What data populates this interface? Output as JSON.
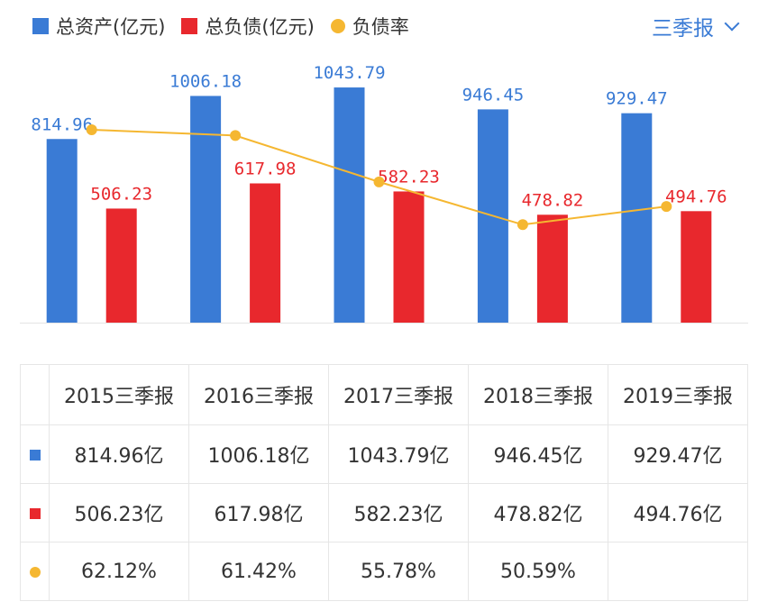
{
  "legend": [
    {
      "label": "总资产(亿元)",
      "color": "#3a7bd5",
      "marker": "square"
    },
    {
      "label": "总负债(亿元)",
      "color": "#e8282d",
      "marker": "square"
    },
    {
      "label": "负债率",
      "color": "#f5b731",
      "marker": "dot"
    }
  ],
  "period_selector": {
    "label": "三季报",
    "icon": "chevron-down-icon"
  },
  "chart_data": {
    "type": "bar",
    "categories": [
      "2015三季报",
      "2016三季报",
      "2017三季报",
      "2018三季报",
      "2019三季报"
    ],
    "series": [
      {
        "name": "总资产(亿元)",
        "type": "bar",
        "color": "#3a7bd5",
        "values": [
          814.96,
          1006.18,
          1043.79,
          946.45,
          929.47
        ],
        "labels": [
          "814.96",
          "1006.18",
          "1043.79",
          "946.45",
          "929.47"
        ]
      },
      {
        "name": "总负债(亿元)",
        "type": "bar",
        "color": "#e8282d",
        "values": [
          506.23,
          617.98,
          582.23,
          478.82,
          494.76
        ],
        "labels": [
          "506.23",
          "617.98",
          "582.23",
          "478.82",
          "494.76"
        ]
      },
      {
        "name": "负债率",
        "type": "line",
        "color": "#f5b731",
        "values": [
          62.12,
          61.42,
          55.78,
          50.59,
          52.8
        ]
      }
    ],
    "legend_position": "top-left",
    "grid": false
  },
  "table": {
    "headers": [
      "2015三季报",
      "2016三季报",
      "2017三季报",
      "2018三季报",
      "2019三季报"
    ],
    "rows": [
      {
        "marker": "square",
        "color": "#3a7bd5",
        "cells": [
          "814.96亿",
          "1006.18亿",
          "1043.79亿",
          "946.45亿",
          "929.47亿"
        ]
      },
      {
        "marker": "square",
        "color": "#e8282d",
        "cells": [
          "506.23亿",
          "617.98亿",
          "582.23亿",
          "478.82亿",
          "494.76亿"
        ]
      },
      {
        "marker": "dot",
        "color": "#f5b731",
        "cells": [
          "62.12%",
          "61.42%",
          "55.78%",
          "50.59%",
          ""
        ]
      }
    ]
  }
}
